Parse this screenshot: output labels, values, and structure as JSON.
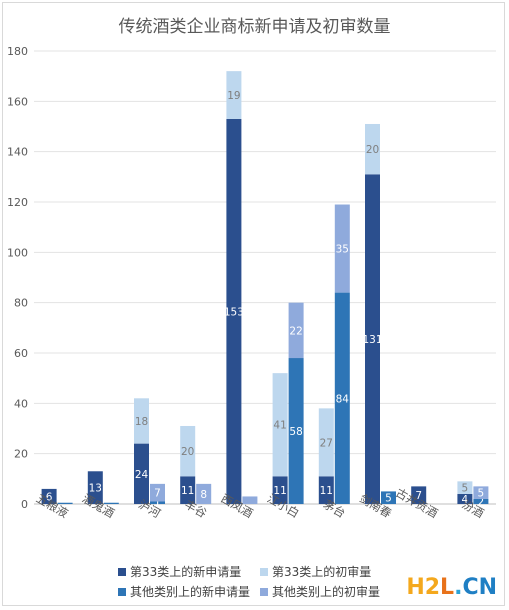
{
  "chart_data": {
    "type": "bar",
    "title": "传统酒类企业商标新申请及初审数量",
    "categories": [
      "五粮液",
      "酒鬼酒",
      "泸河",
      "丰谷",
      "西凤酒",
      "江小白",
      "茅台",
      "剑南春",
      "古井贡酒",
      "汾酒"
    ],
    "ylim": [
      0,
      180
    ],
    "yticks": [
      0,
      20,
      40,
      60,
      80,
      100,
      120,
      140,
      160,
      180
    ],
    "grid": true,
    "legend_position": "bottom",
    "stacks": [
      {
        "stack": "class33",
        "series": [
          {
            "name": "第33类上的新申请量",
            "color": "#2b4f8e",
            "values": [
              6,
              13,
              24,
              11,
              153,
              11,
              11,
              131,
              7,
              4
            ],
            "labels": [
              "6",
              "13",
              "24",
              "11",
              "153",
              "11",
              "11",
              "131",
              "7",
              "4"
            ]
          },
          {
            "name": "第33类上的初审量",
            "color": "#bdd7ee",
            "values": [
              0,
              0,
              18,
              20,
              19,
              41,
              27,
              20,
              0,
              5
            ],
            "labels": [
              "",
              "",
              "18",
              "20",
              "19",
              "41",
              "27",
              "20",
              "",
              "5"
            ]
          }
        ]
      },
      {
        "stack": "other",
        "series": [
          {
            "name": "其他类别上的新申请量",
            "color": "#2e75b6",
            "values": [
              0.5,
              0.5,
              1,
              0,
              0,
              58,
              84,
              5,
              0,
              2
            ],
            "labels": [
              "",
              "",
              "1",
              "",
              "",
              "58",
              "84",
              "5",
              "",
              "2"
            ]
          },
          {
            "name": "其他类别上的初审量",
            "color": "#8faadc",
            "values": [
              0,
              0,
              7,
              8,
              3,
              22,
              35,
              0,
              0,
              5
            ],
            "labels": [
              "",
              "",
              "7",
              "8",
              "",
              "22",
              "35",
              "",
              "",
              "5"
            ]
          }
        ]
      }
    ]
  },
  "watermark": {
    "part1": "H2",
    "part2": "L",
    "part3": ".",
    "part4": "CN"
  }
}
